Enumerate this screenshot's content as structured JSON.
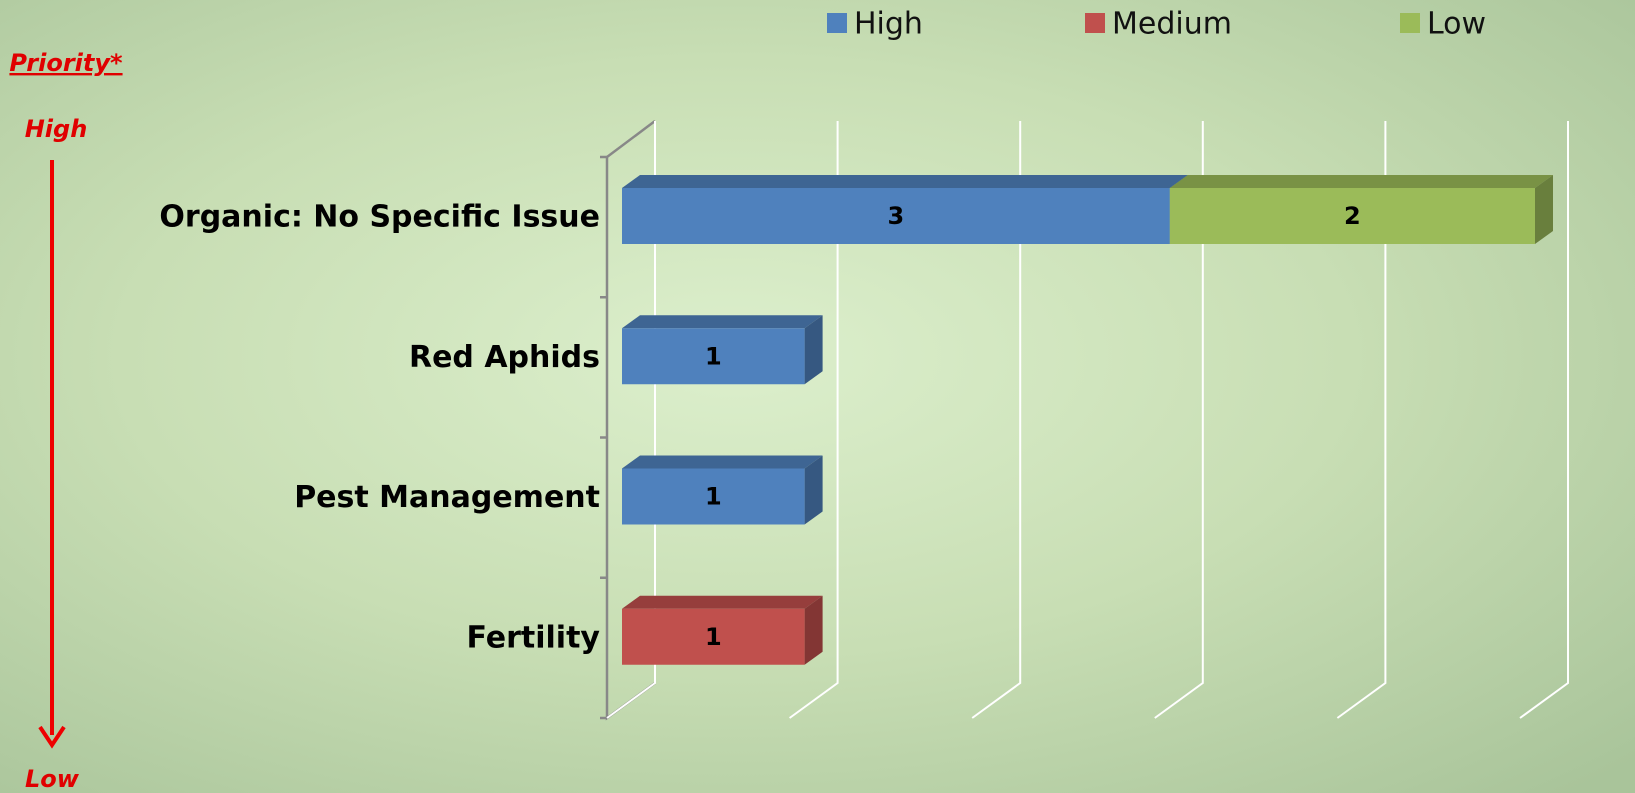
{
  "chart_data": {
    "type": "bar3d-stacked-horizontal",
    "annotations": [
      "Priority*",
      "High",
      "Low"
    ],
    "categories": [
      "Organic: No Specific Issue",
      "Red Aphids",
      "Pest Management",
      "Fertility"
    ],
    "series": [
      {
        "name": "High",
        "color": "#4f81bd",
        "values": [
          3,
          1,
          1,
          null
        ]
      },
      {
        "name": "Medium",
        "color": "#c0504d",
        "values": [
          null,
          null,
          null,
          1
        ]
      },
      {
        "name": "Low",
        "color": "#9bbb59",
        "values": [
          2,
          null,
          null,
          null
        ]
      }
    ],
    "xlim": [
      0,
      5
    ],
    "xticks": [
      0,
      1,
      2,
      3,
      4,
      5
    ],
    "grid": true,
    "legend": "top"
  }
}
